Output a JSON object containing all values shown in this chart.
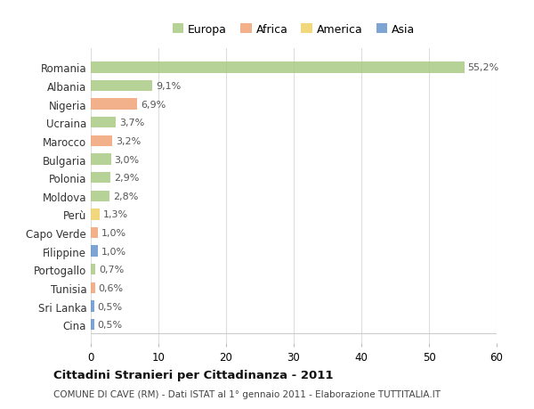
{
  "countries": [
    "Romania",
    "Albania",
    "Nigeria",
    "Ucraina",
    "Marocco",
    "Bulgaria",
    "Polonia",
    "Moldova",
    "Perù",
    "Capo Verde",
    "Filippine",
    "Portogallo",
    "Tunisia",
    "Sri Lanka",
    "Cina"
  ],
  "values": [
    55.2,
    9.1,
    6.9,
    3.7,
    3.2,
    3.0,
    2.9,
    2.8,
    1.3,
    1.0,
    1.0,
    0.7,
    0.6,
    0.5,
    0.5
  ],
  "labels": [
    "55,2%",
    "9,1%",
    "6,9%",
    "3,7%",
    "3,2%",
    "3,0%",
    "2,9%",
    "2,8%",
    "1,3%",
    "1,0%",
    "1,0%",
    "0,7%",
    "0,6%",
    "0,5%",
    "0,5%"
  ],
  "continents": [
    "Europa",
    "Europa",
    "Africa",
    "Europa",
    "Africa",
    "Europa",
    "Europa",
    "Europa",
    "America",
    "Africa",
    "Asia",
    "Europa",
    "Africa",
    "Asia",
    "Asia"
  ],
  "continent_colors": {
    "Europa": "#a8c97f",
    "Africa": "#f0a070",
    "America": "#f0d060",
    "Asia": "#6090c8"
  },
  "legend_order": [
    "Europa",
    "Africa",
    "America",
    "Asia"
  ],
  "title": "Cittadini Stranieri per Cittadinanza - 2011",
  "subtitle": "COMUNE DI CAVE (RM) - Dati ISTAT al 1° gennaio 2011 - Elaborazione TUTTITALIA.IT",
  "xlim": [
    0,
    60
  ],
  "xticks": [
    0,
    10,
    20,
    30,
    40,
    50,
    60
  ],
  "background_color": "#ffffff",
  "grid_color": "#dddddd",
  "bar_height": 0.6,
  "bar_alpha": 0.82
}
